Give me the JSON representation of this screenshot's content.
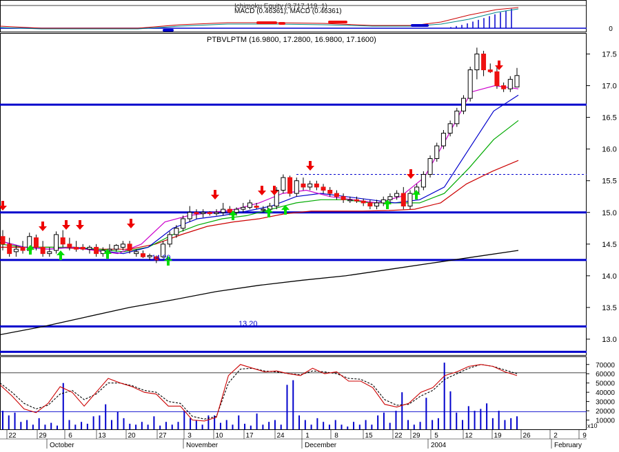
{
  "macd_panel": {
    "title_overlay": "Ichimoku Equity (3.717 119..1)",
    "legend": "MACD (0.46361), MACD (0.46361)",
    "zero_label": "0"
  },
  "price_panel": {
    "legend": "PTBVLPTM (16.9800, 17.2800, 16.9800, 17.1600)",
    "y_ticks": [
      "17.5",
      "17.0",
      "16.5",
      "16.0",
      "15.5",
      "15.0",
      "14.5",
      "14.0",
      "13.5",
      "13.0"
    ],
    "annotation_low": "14.20",
    "annotation_support": "13.20"
  },
  "volume_panel": {
    "y_ticks": [
      "70000",
      "60000",
      "50000",
      "40000",
      "30000",
      "20000",
      "10000"
    ],
    "multiplier": "x10"
  },
  "x_axis": {
    "day_labels": [
      "22",
      "29",
      "6",
      "13",
      "20",
      "27",
      "3",
      "10",
      "17",
      "24",
      "1",
      "8",
      "15",
      "22",
      "29",
      "5",
      "12",
      "19",
      "26",
      "2",
      "9"
    ],
    "month_labels": [
      "October",
      "November",
      "December",
      "2004",
      "February"
    ]
  },
  "colors": {
    "support_line": "#0000cc",
    "ma_short": "#cc00cc",
    "ma_mid": "#0000cc",
    "ma_green": "#00aa00",
    "ma_red": "#cc0000",
    "ma_long": "#000000",
    "down_candle": "#ee1111",
    "up_arrow": "#00dd00",
    "down_arrow": "#ee0000",
    "volume_bar": "#0000cc"
  },
  "chart_data": {
    "type": "candlestick",
    "price": {
      "ylim": [
        12.75,
        17.82
      ],
      "support_levels": [
        16.7,
        15.0,
        14.25,
        13.2,
        12.8
      ],
      "dashed_resistance": 15.6,
      "candles_early": [
        [
          14.62,
          14.72,
          14.4,
          14.5
        ],
        [
          14.5,
          14.6,
          14.3,
          14.35
        ],
        [
          14.38,
          14.48,
          14.3,
          14.42
        ],
        [
          14.45,
          14.55,
          14.35,
          14.4
        ],
        [
          14.4,
          14.68,
          14.35,
          14.62
        ],
        [
          14.6,
          14.65,
          14.4,
          14.45
        ],
        [
          14.45,
          14.55,
          14.3,
          14.35
        ],
        [
          14.35,
          14.45,
          14.3,
          14.38
        ],
        [
          14.4,
          14.7,
          14.35,
          14.65
        ],
        [
          14.6,
          14.72,
          14.45,
          14.5
        ],
        [
          14.5,
          14.6,
          14.4,
          14.45
        ],
        [
          14.45,
          14.55,
          14.38,
          14.42
        ],
        [
          14.45,
          14.5,
          14.4,
          14.42
        ],
        [
          14.42,
          14.48,
          14.35,
          14.45
        ],
        [
          14.45,
          14.5,
          14.3,
          14.35
        ],
        [
          14.35,
          14.45,
          14.3,
          14.4
        ],
        [
          14.4,
          14.5,
          14.35,
          14.42
        ],
        [
          14.42,
          14.5,
          14.38,
          14.48
        ],
        [
          14.45,
          14.55,
          14.4,
          14.5
        ],
        [
          14.5,
          14.55,
          14.35,
          14.4
        ],
        [
          14.35,
          14.42,
          14.3,
          14.38
        ],
        [
          14.35,
          14.4,
          14.28,
          14.3
        ],
        [
          14.3,
          14.35,
          14.25,
          14.32
        ],
        [
          14.3,
          14.32,
          14.2,
          14.25
        ]
      ],
      "candles_rally": [
        [
          14.3,
          14.55,
          14.28,
          14.5
        ],
        [
          14.5,
          14.7,
          14.45,
          14.65
        ],
        [
          14.65,
          14.8,
          14.6,
          14.75
        ],
        [
          14.75,
          14.95,
          14.7,
          14.9
        ],
        [
          14.9,
          15.1,
          14.85,
          15.0
        ],
        [
          15.0,
          15.05,
          14.9,
          14.98
        ],
        [
          14.98,
          15.05,
          14.92,
          15.0
        ],
        [
          15.0,
          15.02,
          14.95,
          14.98
        ],
        [
          14.98,
          15.05,
          14.95,
          15.0
        ],
        [
          15.0,
          15.15,
          14.95,
          15.05
        ],
        [
          15.05,
          15.1,
          14.98,
          15.0
        ],
        [
          15.0,
          15.08,
          14.95,
          15.05
        ],
        [
          15.05,
          15.15,
          15.0,
          15.08
        ],
        [
          15.08,
          15.2,
          15.05,
          15.15
        ],
        [
          15.1,
          15.15,
          15.05,
          15.08
        ],
        [
          15.05,
          15.1,
          15.0,
          15.05
        ],
        [
          15.05,
          15.15,
          15.0,
          15.1
        ],
        [
          15.1,
          15.4,
          15.05,
          15.35
        ],
        [
          15.35,
          15.6,
          15.3,
          15.55
        ],
        [
          15.55,
          15.58,
          15.25,
          15.3
        ],
        [
          15.3,
          15.55,
          15.25,
          15.5
        ],
        [
          15.45,
          15.55,
          15.35,
          15.4
        ],
        [
          15.4,
          15.5,
          15.35,
          15.45
        ],
        [
          15.45,
          15.5,
          15.35,
          15.4
        ]
      ],
      "candles_base": [
        [
          15.4,
          15.45,
          15.3,
          15.35
        ],
        [
          15.35,
          15.4,
          15.25,
          15.3
        ],
        [
          15.3,
          15.35,
          15.2,
          15.25
        ],
        [
          15.25,
          15.3,
          15.15,
          15.2
        ],
        [
          15.2,
          15.25,
          15.15,
          15.2
        ],
        [
          15.2,
          15.25,
          15.15,
          15.18
        ],
        [
          15.18,
          15.22,
          15.1,
          15.15
        ],
        [
          15.15,
          15.2,
          15.05,
          15.1
        ],
        [
          15.1,
          15.2,
          15.05,
          15.15
        ],
        [
          15.15,
          15.25,
          15.1,
          15.2
        ],
        [
          15.2,
          15.3,
          15.15,
          15.25
        ],
        [
          15.25,
          15.35,
          15.2,
          15.3
        ],
        [
          15.3,
          15.4,
          15.05,
          15.1
        ],
        [
          15.1,
          15.35,
          15.05,
          15.3
        ],
        [
          15.3,
          15.45,
          15.25,
          15.4
        ]
      ],
      "candles_breakout": [
        [
          15.4,
          15.65,
          15.35,
          15.6
        ],
        [
          15.6,
          15.9,
          15.55,
          15.85
        ],
        [
          15.85,
          16.1,
          15.8,
          16.05
        ],
        [
          16.05,
          16.3,
          16.0,
          16.25
        ],
        [
          16.25,
          16.45,
          16.2,
          16.4
        ],
        [
          16.4,
          16.65,
          16.35,
          16.6
        ],
        [
          16.6,
          16.85,
          16.55,
          16.8
        ],
        [
          16.8,
          17.3,
          16.75,
          17.25
        ],
        [
          17.25,
          17.6,
          17.1,
          17.5
        ],
        [
          17.5,
          17.55,
          17.15,
          17.25
        ],
        [
          17.25,
          17.35,
          17.2,
          17.22
        ],
        [
          17.22,
          17.3,
          16.95,
          17.0
        ],
        [
          17.0,
          17.05,
          16.9,
          16.95
        ],
        [
          16.95,
          17.15,
          16.9,
          17.1
        ],
        [
          16.98,
          17.28,
          16.98,
          17.16
        ]
      ],
      "ma_short": [
        14.55,
        14.45,
        14.42,
        14.45,
        14.4,
        14.35,
        14.5,
        14.85,
        14.95,
        15.0,
        15.05,
        15.15,
        15.3,
        15.35,
        15.25,
        15.2,
        15.15,
        15.25,
        15.55,
        16.2,
        16.9,
        17.0,
        16.95
      ],
      "ma_mid": [
        14.55,
        14.45,
        14.42,
        14.45,
        14.4,
        14.35,
        14.45,
        14.75,
        14.9,
        14.95,
        15.02,
        15.1,
        15.25,
        15.3,
        15.25,
        15.2,
        15.15,
        15.2,
        15.4,
        16.0,
        16.6,
        16.85
      ],
      "ma_green": [
        14.5,
        14.45,
        14.45,
        14.45,
        14.42,
        14.38,
        14.45,
        14.65,
        14.8,
        14.9,
        14.95,
        15.05,
        15.15,
        15.2,
        15.2,
        15.15,
        15.15,
        15.15,
        15.3,
        15.7,
        16.15,
        16.45
      ],
      "ma_red": [
        14.45,
        14.45,
        14.45,
        14.43,
        14.42,
        14.42,
        14.5,
        14.65,
        14.78,
        14.85,
        14.9,
        14.98,
        15.02,
        15.02,
        15.02,
        15.03,
        15.05,
        15.15,
        15.45,
        15.65,
        15.82
      ],
      "ma_long": [
        13.07,
        13.2,
        13.35,
        13.5,
        13.62,
        13.75,
        13.85,
        13.93,
        14.0,
        14.1,
        14.2,
        14.3,
        14.4
      ]
    },
    "macd_panel": {
      "ylim": [
        0,
        1
      ],
      "histogram_heights": [
        0.05,
        0.1,
        0.15,
        0.22,
        0.3,
        0.38,
        0.46,
        0.55,
        0.63,
        0.72,
        0.8,
        0.88
      ]
    },
    "volume": {
      "ylim": [
        0,
        78000
      ],
      "x10": true,
      "bars": [
        20000,
        15000,
        18000,
        8000,
        10000,
        5000,
        12000,
        5000,
        7000,
        4000,
        50000,
        10000,
        5000,
        8000,
        6000,
        14000,
        15000,
        27000,
        10000,
        19000,
        12000,
        6000,
        5000,
        8000,
        5000,
        14000,
        4000,
        8000,
        5000,
        8000,
        20000,
        12000,
        10000,
        5000,
        15000,
        15000,
        7000,
        10000,
        5000,
        15000,
        6000,
        4000,
        17000,
        5000,
        8000,
        10000,
        5000,
        48000,
        53000,
        15000,
        10000,
        5000,
        12000,
        8000,
        5000,
        10000,
        5000,
        3000,
        8000,
        5000,
        10000,
        5000,
        15000,
        18000,
        7000,
        20000,
        40000,
        10000,
        5000,
        8000,
        34000,
        10000,
        12000,
        72000,
        41000,
        18000,
        10000,
        25000,
        20000,
        22000,
        28000,
        12000,
        20000,
        10000,
        12000,
        14000
      ],
      "stochastic_k": [
        48000,
        36000,
        22000,
        18000,
        28000,
        46000,
        40000,
        25000,
        40000,
        55000,
        50000,
        46000,
        40000,
        38000,
        25000,
        25000,
        10000,
        9000,
        13000,
        58000,
        70000,
        66000,
        62000,
        63000,
        60000,
        58000,
        66000,
        60000,
        62000,
        52000,
        52000,
        45000,
        27000,
        24000,
        28000,
        40000,
        45000,
        58000,
        62000,
        68000,
        70000,
        68000,
        62000,
        58000
      ],
      "stochastic_d": [
        50000,
        40000,
        28000,
        22000,
        26000,
        38000,
        42000,
        32000,
        38000,
        50000,
        50000,
        47000,
        42000,
        40000,
        30000,
        28000,
        14000,
        11000,
        14000,
        50000,
        65000,
        66000,
        63000,
        62000,
        60000,
        59000,
        63000,
        62000,
        60000,
        55000,
        54000,
        48000,
        32000,
        26000,
        27000,
        36000,
        42000,
        54000,
        60000,
        66000,
        70000,
        68000,
        64000,
        60000
      ]
    }
  }
}
